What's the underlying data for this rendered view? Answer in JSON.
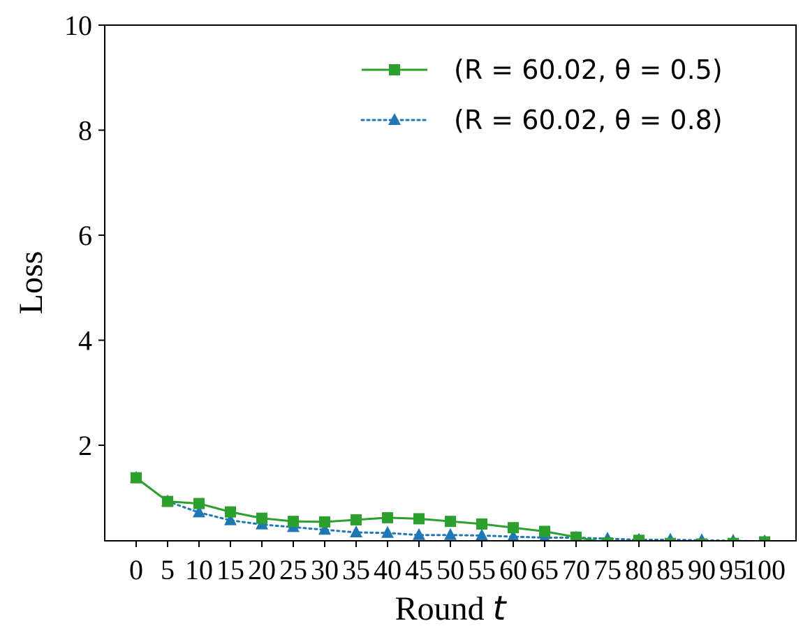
{
  "chart_data": {
    "type": "line",
    "xlabel": "Round",
    "xlabel_var": "t",
    "ylabel": "Loss",
    "xlim": [
      -5,
      105
    ],
    "ylim": [
      0.18,
      10
    ],
    "x": [
      0,
      5,
      10,
      15,
      20,
      25,
      30,
      35,
      40,
      45,
      50,
      55,
      60,
      65,
      70,
      75,
      80,
      85,
      90,
      95,
      100
    ],
    "xticks": [
      0,
      5,
      10,
      15,
      20,
      25,
      30,
      35,
      40,
      45,
      50,
      55,
      60,
      65,
      70,
      75,
      80,
      85,
      90,
      95,
      100
    ],
    "xtick_labels": [
      "0",
      "5",
      "10",
      "15",
      "20",
      "25",
      "30",
      "35",
      "40",
      "45",
      "50",
      "55",
      "60",
      "65",
      "70",
      "75",
      "80",
      "85",
      "90",
      "95",
      "100"
    ],
    "yticks": [
      2,
      4,
      6,
      8,
      10
    ],
    "ytick_labels": [
      "2",
      "4",
      "6",
      "8",
      "10"
    ],
    "grid": false,
    "legend_position": "top-right",
    "series": [
      {
        "name": "(R = 60.02, θ = 0.5)",
        "color": "#2ca02c",
        "line_style": "solid",
        "marker": "square",
        "values": [
          1.38,
          0.93,
          0.89,
          0.73,
          0.61,
          0.55,
          0.54,
          0.58,
          0.62,
          0.6,
          0.55,
          0.5,
          0.43,
          0.36,
          0.25,
          0.14,
          0.19,
          0.13,
          0.12,
          0.13,
          0.16
        ]
      },
      {
        "name": "(R = 60.02, θ = 0.8)",
        "color": "#1f77b4",
        "line_style": "dotted",
        "marker": "triangle",
        "values": [
          1.38,
          0.93,
          0.72,
          0.57,
          0.49,
          0.44,
          0.39,
          0.34,
          0.33,
          0.29,
          0.29,
          0.28,
          0.26,
          0.24,
          0.24,
          0.22,
          0.2,
          0.2,
          0.19,
          0.18,
          0.17
        ]
      }
    ]
  }
}
